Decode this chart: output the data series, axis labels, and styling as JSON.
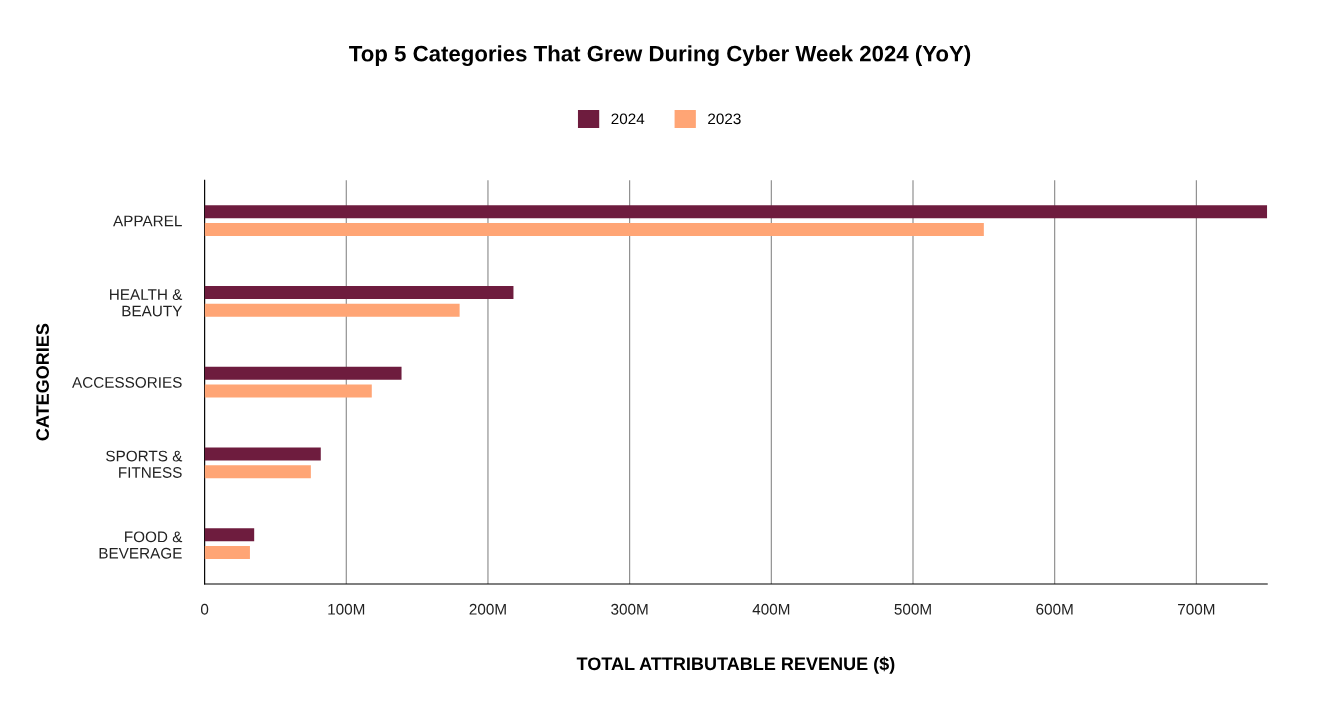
{
  "chart_data": {
    "type": "bar",
    "orientation": "horizontal",
    "title": "Top 5 Categories That Grew During Cyber Week 2024 (YoY)",
    "xlabel": "TOTAL ATTRIBUTABLE REVENUE ($)",
    "ylabel": "CATEGORIES",
    "categories": [
      "APPAREL",
      "HEALTH &\nBEAUTY",
      "ACCESSORIES",
      "SPORTS &\nFITNESS",
      "FOOD &\nBEVERAGE"
    ],
    "series": [
      {
        "name": "2024",
        "color": "#6e1c3e",
        "values": [
          750,
          218,
          139,
          82,
          35
        ]
      },
      {
        "name": "2023",
        "color": "#ffa575",
        "values": [
          550,
          180,
          118,
          75,
          32
        ]
      }
    ],
    "xlim": [
      0,
      750
    ],
    "xticks": [
      0,
      {
        "value": 100,
        "label": "100M"
      },
      {
        "value": 200,
        "label": "200M"
      },
      {
        "value": 300,
        "label": "300M"
      },
      {
        "value": 400,
        "label": "400M"
      },
      {
        "value": 500,
        "label": "500M"
      },
      {
        "value": 600,
        "label": "600M"
      },
      {
        "value": 700,
        "label": "700M"
      }
    ],
    "grid": "x",
    "legend": "top"
  }
}
